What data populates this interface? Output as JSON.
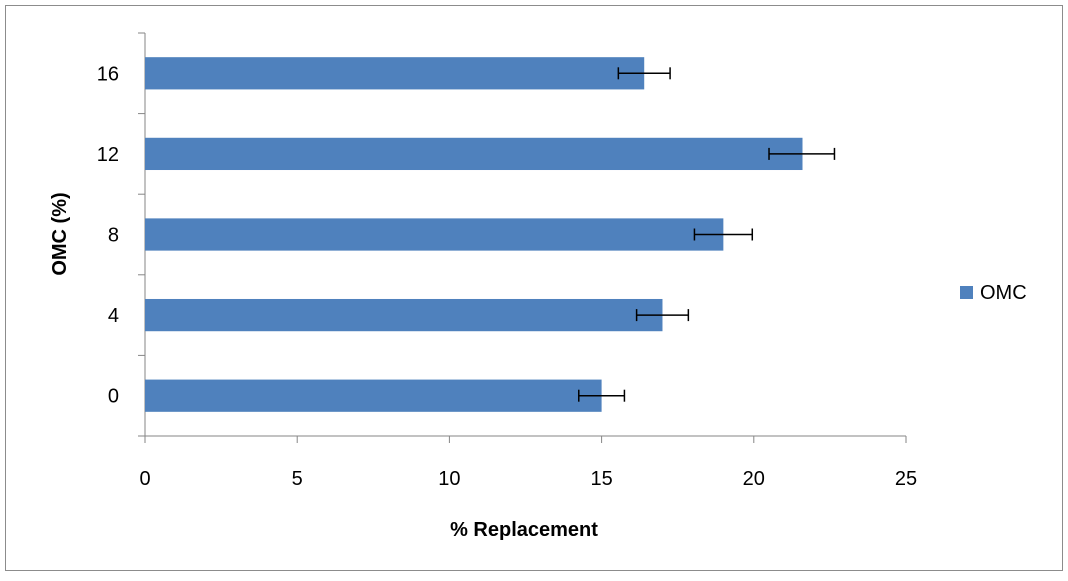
{
  "chart_data": {
    "type": "bar",
    "orientation": "horizontal",
    "title": "",
    "xlabel": "% Replacement",
    "ylabel": "OMC (%)",
    "categories": [
      "0",
      "4",
      "8",
      "12",
      "16"
    ],
    "series": [
      {
        "name": "OMC",
        "color": "#4f81bd",
        "values": [
          15.0,
          17.0,
          19.0,
          21.6,
          16.4
        ],
        "error_low": [
          14.25,
          16.15,
          18.05,
          20.5,
          15.55
        ],
        "error_high": [
          15.75,
          17.85,
          19.95,
          22.65,
          17.25
        ]
      }
    ],
    "xlim": [
      0,
      25
    ],
    "xticks": [
      "0",
      "5",
      "10",
      "15",
      "20",
      "25"
    ],
    "grid": false,
    "legend_position": "right"
  }
}
